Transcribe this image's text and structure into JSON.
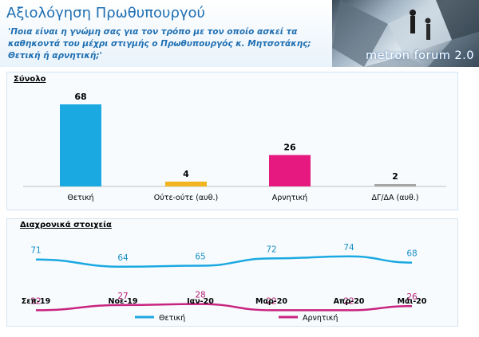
{
  "header": {
    "title": "Αξιολόγηση Πρωθυπουργού",
    "question": "'Ποια είναι η γνώμη σας για τον τρόπο με τον οποίο ασκεί τα καθηκοντά του μέχρι στιγμής ο Πρωθυπουργός κ. Μητσοτάκης; Θετική ή αρνητική;'",
    "logo": "metron forum 2.0"
  },
  "chart_data": [
    {
      "type": "bar",
      "title": "Σύνολο",
      "categories": [
        "Θετική",
        "Ούτε-ούτε (αυθ.)",
        "Αρνητική",
        "ΔΓ/ΔΑ (αυθ.)"
      ],
      "values": [
        68,
        4,
        26,
        2
      ],
      "colors": [
        "#1ba9e1",
        "#f0b51f",
        "#e5197f",
        "#a6a6a6"
      ],
      "ylim": [
        0,
        68
      ]
    },
    {
      "type": "line",
      "title": "Διαχρονικά στοιχεία",
      "categories": [
        "Σεπ-19",
        "Νοε-19",
        "Ιαν-20",
        "Μαρ-20",
        "Απρ-20",
        "Μάι-20"
      ],
      "series": [
        {
          "name": "Θετική",
          "values": [
            71,
            64,
            65,
            72,
            74,
            68
          ],
          "color": "#1ba9e1"
        },
        {
          "name": "Αρνητική",
          "values": [
            22,
            27,
            28,
            22,
            22,
            26
          ],
          "color": "#c8247f"
        }
      ],
      "legend": "bottom"
    }
  ]
}
